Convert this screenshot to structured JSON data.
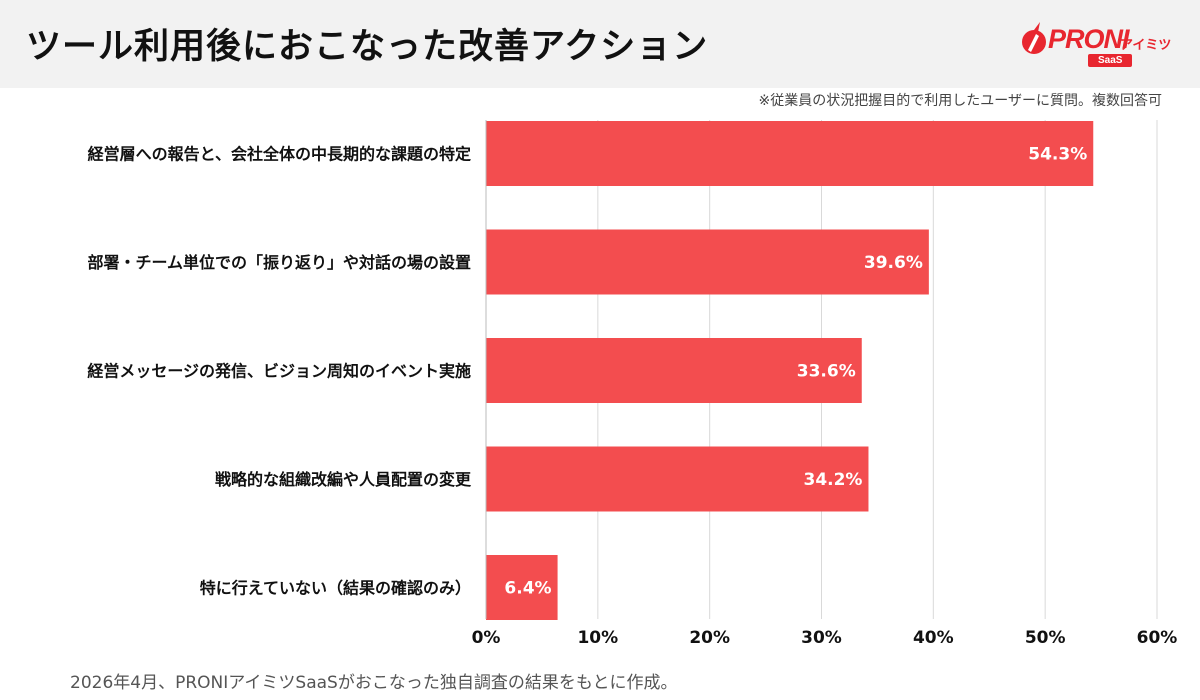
{
  "page": {
    "title": "ツール利用後におこなった改善アクション",
    "note": "※従業員の状況把握目的で利用したユーザーに質問。複数回答可",
    "footer": "2026年4月、PRONIアイミツSaaSがおこなった独自調査の結果をもとに作成。"
  },
  "logo": {
    "main": "PRONI",
    "sub": "アイミツ",
    "saas": "SaaS"
  },
  "colors": {
    "bar": "#f34d4f",
    "brand": "#e8262f",
    "header_bg": "#f2f2f2",
    "grid": "#d9d9d9"
  },
  "chart_data": {
    "type": "bar",
    "orientation": "horizontal",
    "categories": [
      "経営層への報告と、会社全体の中長期的な課題の特定",
      "部署・チーム単位での「振り返り」や対話の場の設置",
      "経営メッセージの発信、ビジョン周知のイベント実施",
      "戦略的な組織改編や人員配置の変更",
      "特に行えていない（結果の確認のみ）"
    ],
    "values": [
      54.3,
      39.6,
      33.6,
      34.2,
      6.4
    ],
    "value_labels": [
      "54.3%",
      "39.6%",
      "33.6%",
      "34.2%",
      "6.4%"
    ],
    "xlim": [
      0,
      60
    ],
    "ticks": [
      "0%",
      "10%",
      "20%",
      "30%",
      "40%",
      "50%",
      "60%"
    ],
    "grid": true
  }
}
